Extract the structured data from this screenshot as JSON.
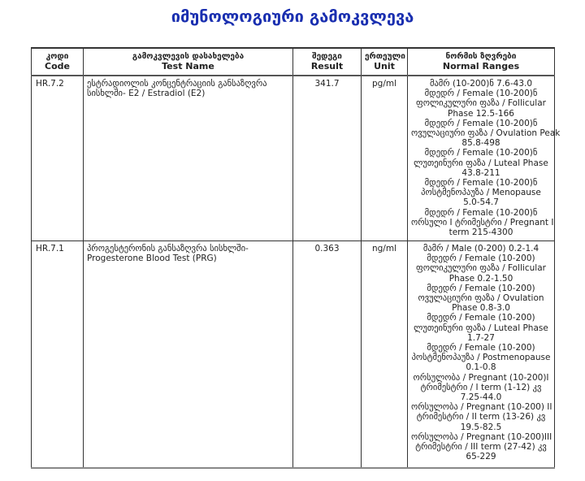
{
  "title": "იმუნოლოგიური გამოკვლევა",
  "headers": {
    "code": {
      "ka": "კოდი",
      "en": "Code"
    },
    "name": {
      "ka": "გამოკვლევის დასახელება",
      "en": "Test Name"
    },
    "result": {
      "ka": "შედეგი",
      "en": "Result"
    },
    "unit": {
      "ka": "ერთეული",
      "en": "Unit"
    },
    "ranges": {
      "ka": "ნორმის ზღვრები",
      "en": "Normal Ranges"
    }
  },
  "rows": [
    {
      "code": "HR.7.2",
      "name": "ესტრადიოლის კონცენტრაციის განსაზღვრა სისხლში- E2 / Estradiol (E2)",
      "result": "341.7",
      "unit": "pg/ml",
      "ranges": [
        "მამრ (10-200)ნ 7.6-43.0",
        "მდედრ / Female (10-200)ნ",
        "ფოლიკულური ფაზა / Follicular",
        "Phase 12.5-166",
        "მდედრ / Female (10-200)ნ",
        "ოვულაციური ფაზა / Ovulation Peak",
        "85.8-498",
        "მდედრ / Female (10-200)ნ",
        "ლუთეინური ფაზა / Luteal Phase",
        "43.8-211",
        "მდედრ / Female (10-200)ნ",
        "პოსტმენოპაუზა / Menopause",
        "5.0-54.7",
        "მდედრ / Female (10-200)ნ",
        "ორსული I ტრიმესტრი / Pregnant I",
        "term 215-4300"
      ]
    },
    {
      "code": "HR.7.1",
      "name": "პროგესტერონის განსაზღვრა სისხლში-Progesterone Blood Test (PRG)",
      "result": "0.363",
      "unit": "ng/ml",
      "ranges": [
        "მამრ / Male (0-200) 0.2-1.4",
        "მდედრ / Female (10-200)",
        "ფოლიკულური ფაზა / Follicular",
        "Phase 0.2-1.50",
        "მდედრ / Female (10-200)",
        "ოვულაციური ფაზა / Ovulation",
        "Phase 0.8-3.0",
        "მდედრ / Female (10-200)",
        "ლუთეინური ფაზა / Luteal Phase",
        "1.7-27",
        "მდედრ / Female (10-200)",
        "პოსტმენოპაუზა / Postmenopause",
        "0.1-0.8",
        "ორსულობა / Pregnant (10-200)I",
        "ტრიმესტრი / I term (1-12) კვ",
        "7.25-44.0",
        "ორსულობა / Pregnant (10-200) II",
        "ტრიმესტრი / II term (13-26) კვ",
        "19.5-82.5",
        "ორსულობა / Pregnant (10-200)III",
        "ტრიმესტრი / III term (27-42) კვ",
        "65-229"
      ]
    }
  ]
}
